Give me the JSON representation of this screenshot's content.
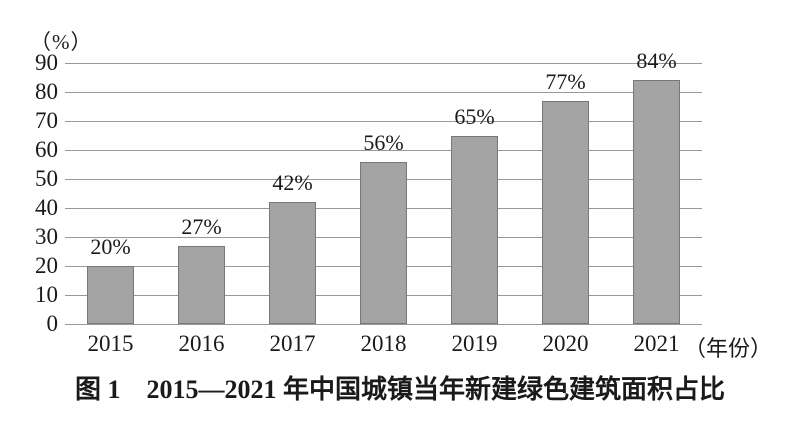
{
  "chart_data": {
    "type": "bar",
    "title": "",
    "caption": "图 1　2015—2021 年中国城镇当年新建绿色建筑面积占比",
    "categories": [
      "2015",
      "2016",
      "2017",
      "2018",
      "2019",
      "2020",
      "2021"
    ],
    "values": [
      20,
      27,
      42,
      56,
      65,
      77,
      84
    ],
    "data_labels": [
      "20%",
      "27%",
      "42%",
      "56%",
      "65%",
      "77%",
      "84%"
    ],
    "y_axis": {
      "unit_label": "（%）",
      "min": 0,
      "max": 90,
      "ticks": [
        90,
        80,
        70,
        60,
        50,
        40,
        30,
        20,
        10,
        0
      ],
      "gridlines": true
    },
    "x_axis": {
      "unit_label": "（年份）"
    },
    "legend": null,
    "colors": {
      "background": "#ffffff",
      "bar_fill": "#a4a4a4",
      "bar_border": "#787878",
      "gridline": "#999999",
      "text": "#1a1a1a"
    }
  }
}
